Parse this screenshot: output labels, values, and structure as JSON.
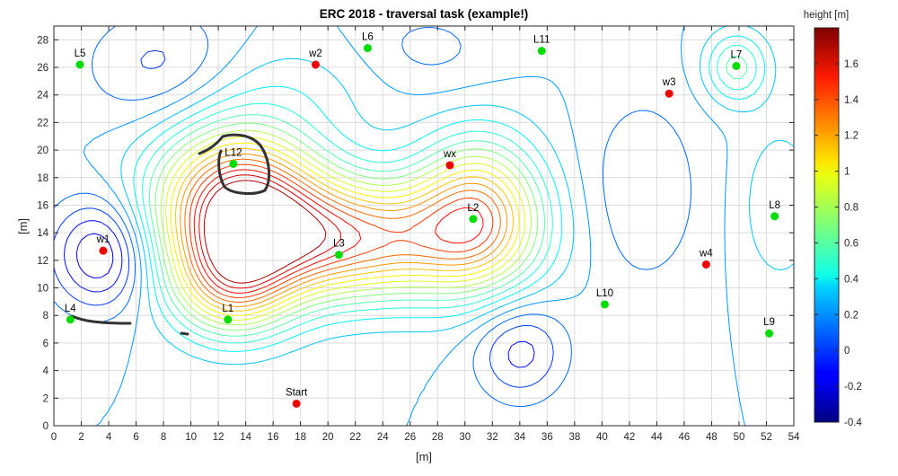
{
  "chart_data": {
    "type": "contour",
    "title": "ERC 2018 - traversal task (example!)",
    "xlabel": "[m]",
    "ylabel": "[m]",
    "xlim": [
      0,
      54
    ],
    "ylim": [
      0,
      29
    ],
    "xticks": [
      0,
      2,
      4,
      6,
      8,
      10,
      12,
      14,
      16,
      18,
      20,
      22,
      24,
      26,
      28,
      30,
      32,
      34,
      36,
      38,
      40,
      42,
      44,
      46,
      48,
      50,
      52,
      54
    ],
    "yticks": [
      0,
      2,
      4,
      6,
      8,
      10,
      12,
      14,
      16,
      18,
      20,
      22,
      24,
      26,
      28
    ],
    "grid": true,
    "colorbar": {
      "label": "height [m]",
      "range": [
        -0.4,
        1.8
      ],
      "ticks": [
        -0.4,
        -0.2,
        0,
        0.2,
        0.4,
        0.6,
        0.8,
        1,
        1.2,
        1.4,
        1.6
      ],
      "colormap": "jet"
    },
    "contour_levels": [
      -0.2,
      -0.1,
      0,
      0.1,
      0.2,
      0.3,
      0.4,
      0.5,
      0.6,
      0.7,
      0.8,
      0.9,
      1.0,
      1.1,
      1.2,
      1.3,
      1.4,
      1.5,
      1.6,
      1.7
    ],
    "points": [
      {
        "label": "L5",
        "x": 1.9,
        "y": 26.2,
        "color": "green"
      },
      {
        "label": "w2",
        "x": 19.1,
        "y": 26.2,
        "color": "red"
      },
      {
        "label": "L6",
        "x": 22.9,
        "y": 27.4,
        "color": "green"
      },
      {
        "label": "L11",
        "x": 35.6,
        "y": 27.2,
        "color": "green"
      },
      {
        "label": "L7",
        "x": 49.8,
        "y": 26.1,
        "color": "green"
      },
      {
        "label": "w3",
        "x": 44.9,
        "y": 24.1,
        "color": "red"
      },
      {
        "label": "L12",
        "x": 13.1,
        "y": 19.0,
        "color": "green"
      },
      {
        "label": "wx",
        "x": 28.9,
        "y": 18.9,
        "color": "red"
      },
      {
        "label": "L2",
        "x": 30.6,
        "y": 15.0,
        "color": "green"
      },
      {
        "label": "L8",
        "x": 52.6,
        "y": 15.2,
        "color": "green"
      },
      {
        "label": "w1",
        "x": 3.6,
        "y": 12.7,
        "color": "red"
      },
      {
        "label": "L3",
        "x": 20.8,
        "y": 12.4,
        "color": "green"
      },
      {
        "label": "w4",
        "x": 47.6,
        "y": 11.7,
        "color": "red"
      },
      {
        "label": "L10",
        "x": 40.2,
        "y": 8.8,
        "color": "green"
      },
      {
        "label": "L4",
        "x": 1.2,
        "y": 7.7,
        "color": "green"
      },
      {
        "label": "L1",
        "x": 12.7,
        "y": 7.7,
        "color": "green"
      },
      {
        "label": "L9",
        "x": 52.2,
        "y": 6.7,
        "color": "green"
      },
      {
        "label": "Start",
        "x": 17.7,
        "y": 1.6,
        "color": "red"
      }
    ]
  },
  "colors": {
    "green_marker": "#00dd00",
    "red_marker": "#ee0000",
    "grid": "#dcdcdc",
    "sketch": "#333333"
  }
}
